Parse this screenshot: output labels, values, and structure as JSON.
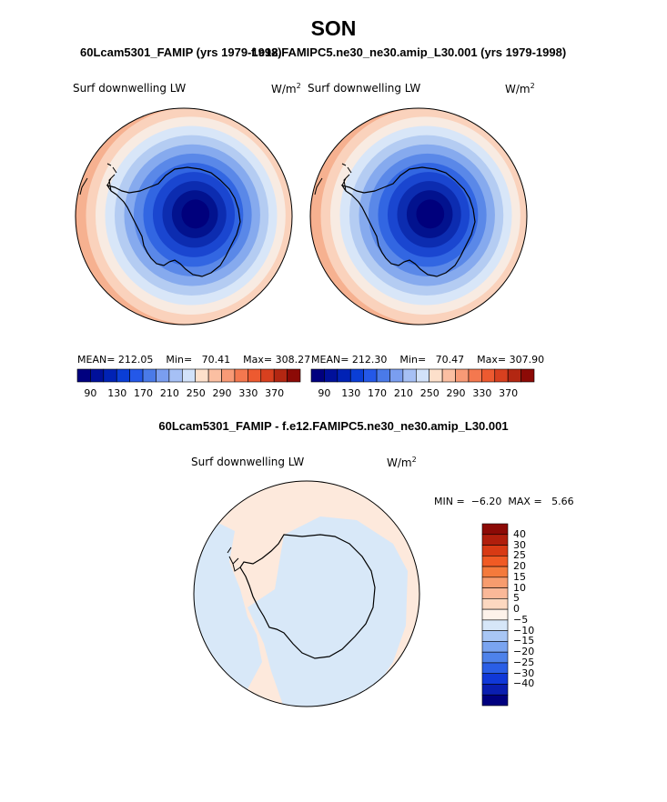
{
  "page_title": "SON",
  "panel_left": {
    "case": "60Lcam5301_FAMIP (yrs 1979-1998)",
    "field": "Surf downwelling LW",
    "units": "W/m",
    "units_exp": "2",
    "mean_label": "MEAN=",
    "mean": "212.05",
    "min_label": "Min=",
    "min": "70.41",
    "max_label": "Max=",
    "max": "308.27"
  },
  "panel_right": {
    "case": "f.e12.FAMIPC5.ne30_ne30.amip_L30.001 (yrs 1979-1998)",
    "field": "Surf downwelling LW",
    "units": "W/m",
    "units_exp": "2",
    "mean_label": "MEAN=",
    "mean": "212.30",
    "min_label": "Min=",
    "min": "70.47",
    "max_label": "Max=",
    "max": "307.90"
  },
  "abs_colorbar": {
    "colors": [
      "#00007f",
      "#00109a",
      "#0022b5",
      "#0a3ed6",
      "#2458e8",
      "#4a7ae8",
      "#7a9ef0",
      "#a6c0f5",
      "#d2e2fa",
      "#fde0cb",
      "#fbbfa2",
      "#f89a76",
      "#f4784f",
      "#ed5a30",
      "#d8401f",
      "#b32712",
      "#8c0a06"
    ],
    "labels": [
      "90",
      "130",
      "170",
      "210",
      "250",
      "290",
      "330",
      "370"
    ]
  },
  "diff_panel": {
    "title": "60Lcam5301_FAMIP - f.e12.FAMIPC5.ne30_ne30.amip_L30.001",
    "field": "Surf downwelling LW",
    "units": "W/m",
    "units_exp": "2",
    "min_label": "MIN =",
    "min": "−6.20",
    "max_label": "MAX =",
    "max": "5.66"
  },
  "diff_colorbar": {
    "colors": [
      "#8c0a06",
      "#b01e0c",
      "#d83a14",
      "#f05a24",
      "#f47a3c",
      "#f79c6e",
      "#fab898",
      "#fdd8c0",
      "#fdf2ea",
      "#d6e6f8",
      "#a8c6f4",
      "#7aa4f0",
      "#4e82ea",
      "#2a5ee6",
      "#1038d8",
      "#0a1eb0",
      "#00007f"
    ],
    "labels": [
      "40",
      "30",
      "25",
      "20",
      "15",
      "10",
      "5",
      "0",
      "−5",
      "−10",
      "−15",
      "−20",
      "−25",
      "−30",
      "−40"
    ]
  },
  "map_fill": {
    "ring_colors": [
      "#ee7a50",
      "#f29470",
      "#f6b190",
      "#fad2bc",
      "#f8ebe2",
      "#d8e6f8",
      "#b4ccf2",
      "#86aaee",
      "#5a88e8",
      "#3266e2",
      "#1a46d0",
      "#0c2cb0",
      "#02128e",
      "#00007c"
    ],
    "diff_ocean": "#fde9dc",
    "diff_land": "#d8e8f8"
  }
}
